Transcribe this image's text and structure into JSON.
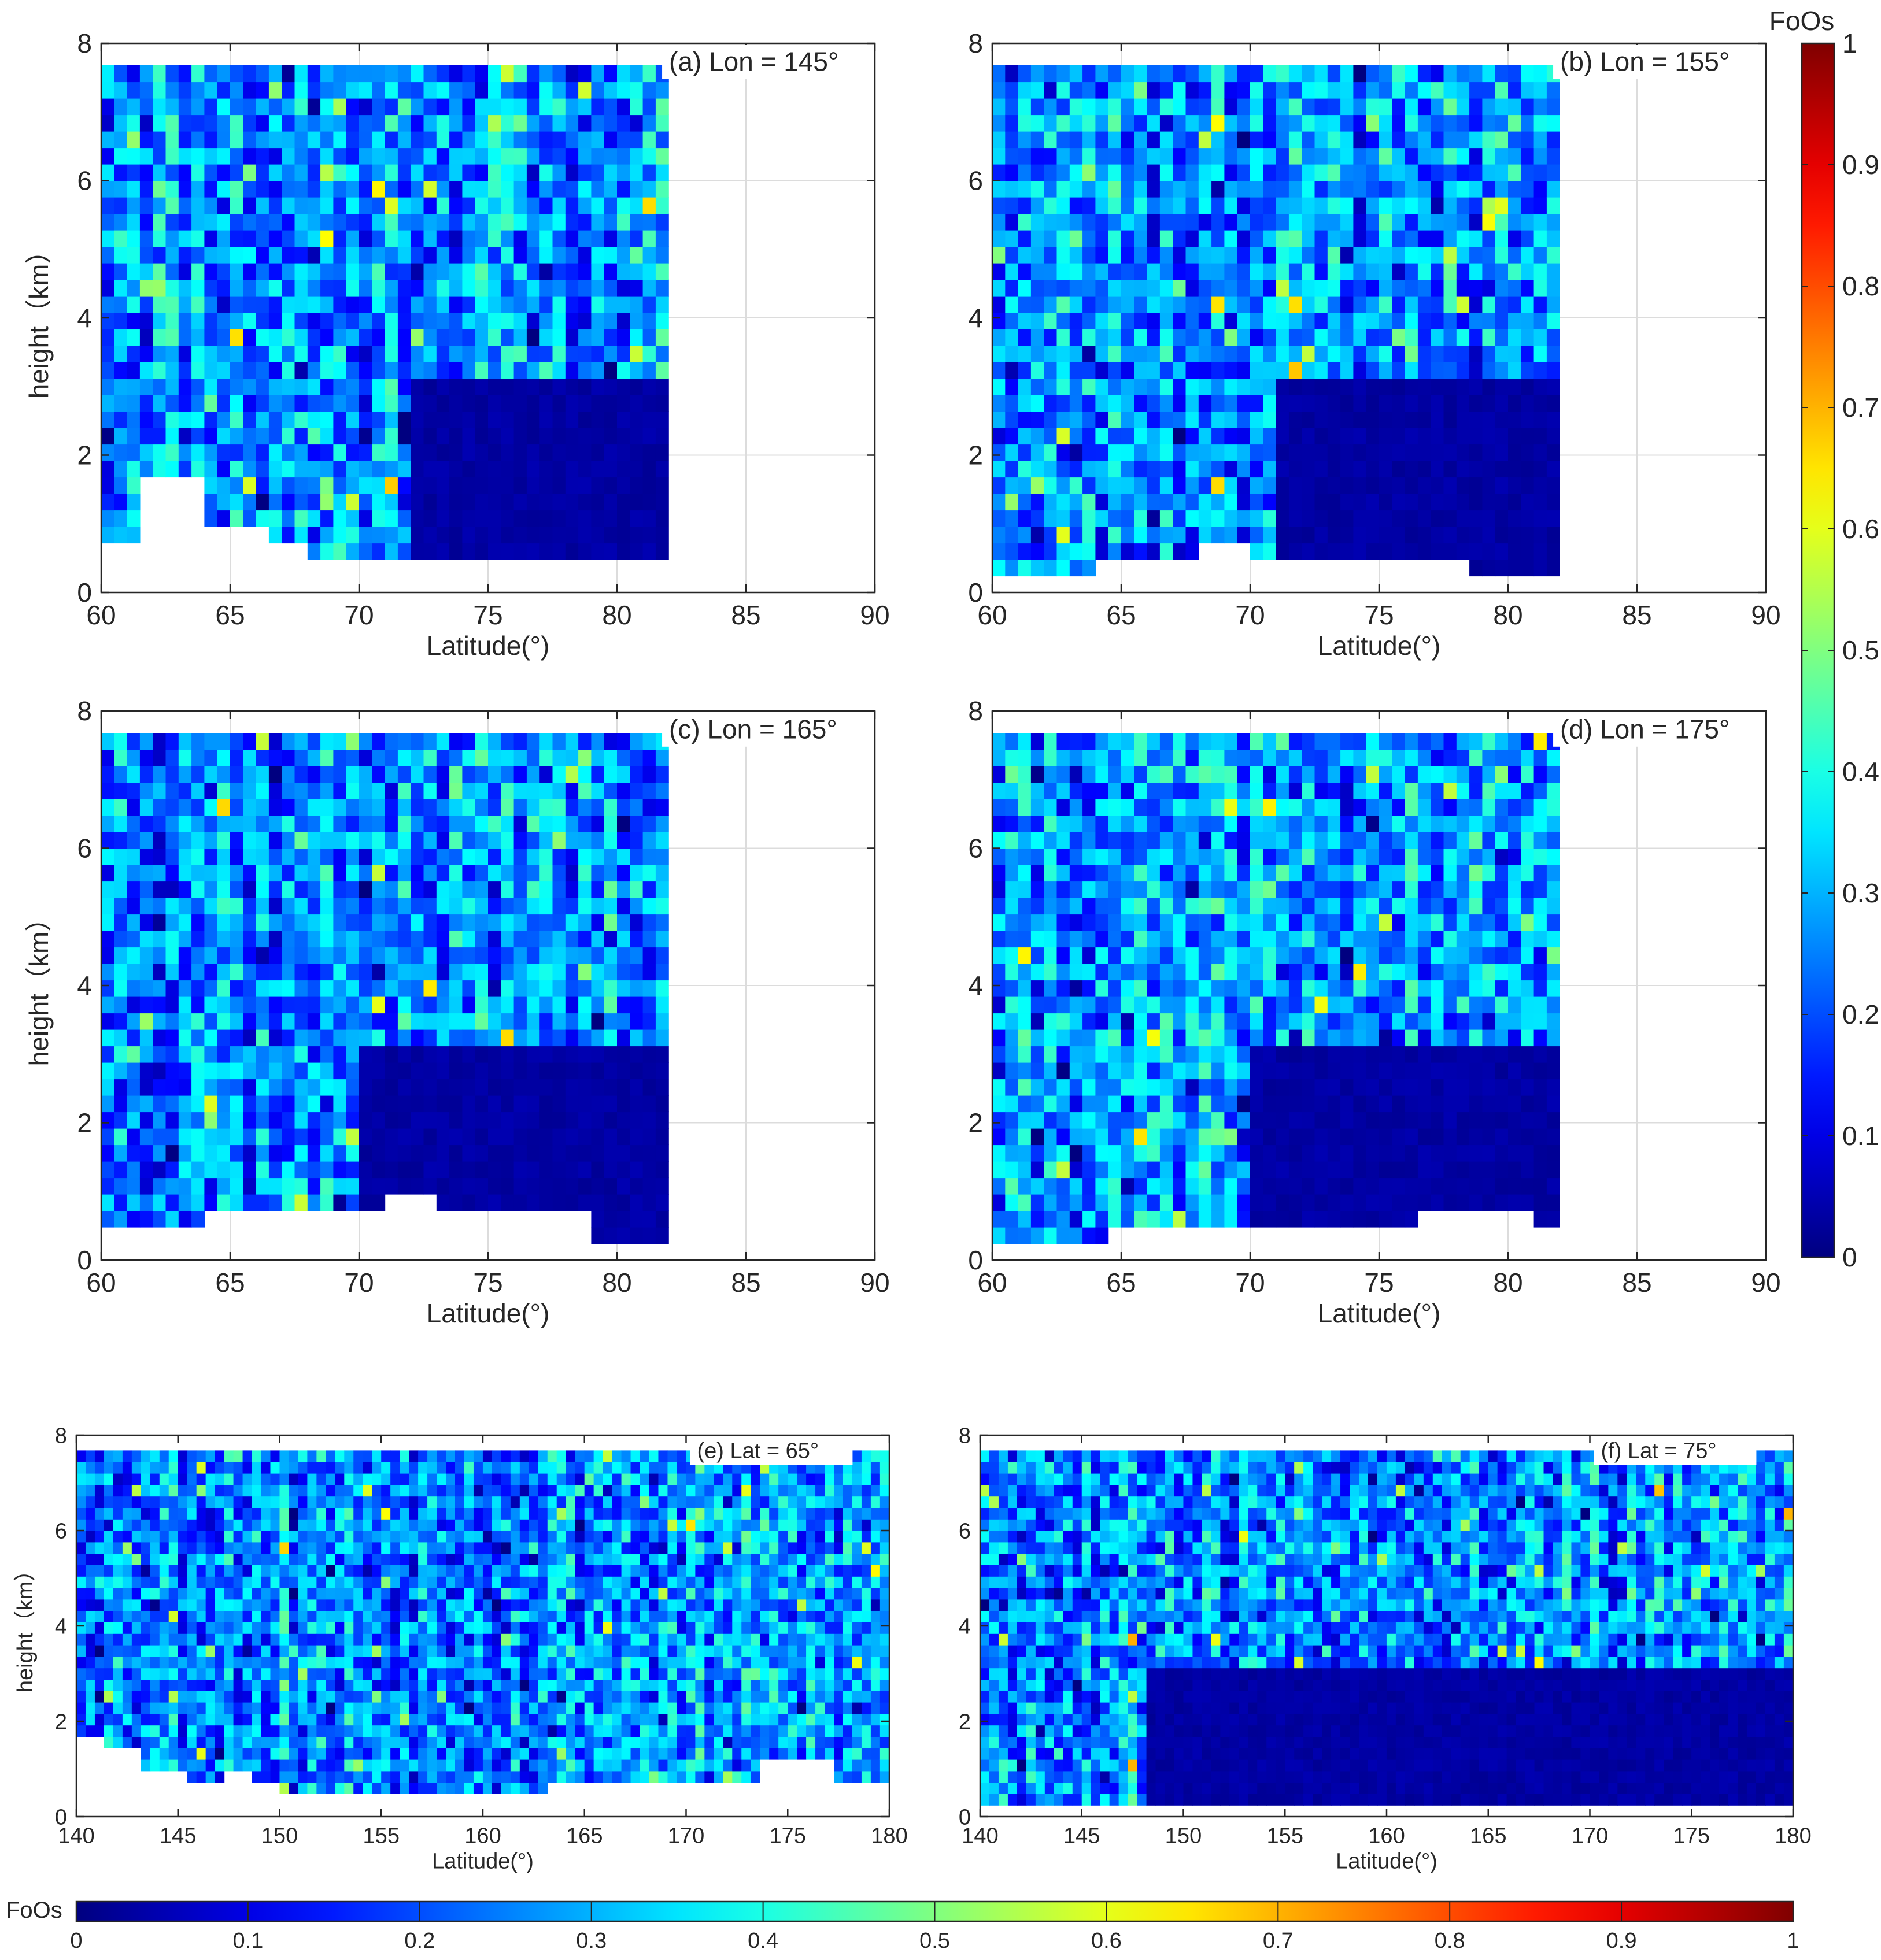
{
  "figure": {
    "colorbar_title": "FoOs",
    "colorbar_ticks": [
      "0",
      "0.1",
      "0.2",
      "0.3",
      "0.4",
      "0.5",
      "0.6",
      "0.7",
      "0.8",
      "0.9",
      "1"
    ],
    "colorbar_range": [
      0,
      1
    ],
    "colormap": "jet"
  },
  "chart_data": [
    {
      "type": "heatmap",
      "annotation": "(a) Lon = 145°",
      "xlabel": "Latitude(°)",
      "ylabel": "height（km）",
      "xlim": [
        60,
        90
      ],
      "ylim": [
        0,
        8
      ],
      "xticks": [
        "60",
        "65",
        "70",
        "75",
        "80",
        "85",
        "90"
      ],
      "yticks": [
        "0",
        "2",
        "4",
        "6",
        "8"
      ],
      "data_x_range": [
        60,
        82
      ],
      "data_y_range": [
        0.12,
        7.68
      ],
      "grid": true,
      "surface_ground": [
        0.6,
        0.6,
        0.6,
        1.6,
        1.6,
        1.6,
        1.6,
        1.6,
        0.9,
        0.9,
        0.9,
        0.9,
        0.9,
        0.6,
        0.6,
        0.6,
        0.45,
        0.45,
        0.45,
        0.45,
        0.3,
        0.3,
        0.3,
        0.3,
        0.3,
        0.3,
        0.3,
        0.3,
        0.3,
        0.3,
        0.3,
        0.3,
        0.3,
        0.3,
        0.3,
        0.3,
        0.3,
        0.3,
        0.3,
        0.3,
        0.3,
        0.3,
        0.3,
        0.3,
        0.3,
        0.3
      ],
      "low_zone": {
        "from_lat": 72,
        "top_km": 2.9,
        "value": 0.02
      },
      "seed": 11
    },
    {
      "type": "heatmap",
      "annotation": "(b) Lon = 155°",
      "xlabel": "Latitude(°)",
      "ylabel": "",
      "xlim": [
        60,
        90
      ],
      "ylim": [
        0,
        8
      ],
      "xticks": [
        "60",
        "65",
        "70",
        "75",
        "80",
        "85",
        "90"
      ],
      "yticks": [
        "0",
        "2",
        "4",
        "6",
        "8"
      ],
      "data_x_range": [
        60,
        82
      ],
      "data_y_range": [
        0.12,
        7.68
      ],
      "grid": true,
      "surface_ground": [
        0.12,
        0.12,
        0.12,
        0.12,
        0.3,
        0.3,
        0.3,
        0.3,
        0.6,
        0.6,
        0.3,
        0.3,
        0.3,
        0.3,
        0.3,
        0.3,
        0.3,
        0.3,
        0.3,
        0.12,
        0.12,
        0.12,
        0.12
      ],
      "low_zone": {
        "from_lat": 71,
        "top_km": 3.1,
        "value": 0.02
      },
      "seed": 23
    },
    {
      "type": "heatmap",
      "annotation": "(c) Lon = 165°",
      "xlabel": "Latitude(°)",
      "ylabel": "height（km）",
      "xlim": [
        60,
        90
      ],
      "ylim": [
        0,
        8
      ],
      "xticks": [
        "60",
        "65",
        "70",
        "75",
        "80",
        "85",
        "90"
      ],
      "yticks": [
        "0",
        "2",
        "4",
        "6",
        "8"
      ],
      "data_x_range": [
        60,
        82
      ],
      "data_y_range": [
        0.12,
        7.68
      ],
      "grid": true,
      "surface_ground": [
        0.3,
        0.3,
        0.3,
        0.3,
        0.5,
        0.5,
        0.5,
        0.5,
        0.5,
        0.5,
        0.5,
        0.9,
        0.9,
        0.5,
        0.5,
        0.5,
        0.5,
        0.5,
        0.5,
        0.12,
        0.12,
        0.12
      ],
      "low_zone": {
        "from_lat": 70,
        "top_km": 2.9,
        "value": 0.02
      },
      "seed": 37
    },
    {
      "type": "heatmap",
      "annotation": "(d) Lon = 175°",
      "xlabel": "Latitude(°)",
      "ylabel": "",
      "xlim": [
        60,
        90
      ],
      "ylim": [
        0,
        8
      ],
      "xticks": [
        "60",
        "65",
        "70",
        "75",
        "80",
        "85",
        "90"
      ],
      "yticks": [
        "0",
        "2",
        "4",
        "6",
        "8"
      ],
      "data_x_range": [
        60,
        82
      ],
      "data_y_range": [
        0.12,
        7.68
      ],
      "grid": true,
      "surface_ground": [
        0.12,
        0.12,
        0.12,
        0.12,
        0.3,
        0.3,
        0.3,
        0.3,
        0.3,
        0.3,
        0.3,
        0.3,
        0.3,
        0.3,
        0.3,
        0.5,
        0.6,
        0.6,
        0.5,
        0.3
      ],
      "low_zone": {
        "from_lat": 70,
        "top_km": 2.9,
        "value": 0.02
      },
      "seed": 41
    },
    {
      "type": "heatmap",
      "annotation": "(e) Lat = 65°",
      "xlabel": "Latitude(°)",
      "ylabel": "height（km）",
      "xlim": [
        140,
        180
      ],
      "ylim": [
        0,
        8
      ],
      "xticks": [
        "140",
        "145",
        "150",
        "155",
        "160",
        "165",
        "170",
        "175",
        "180"
      ],
      "yticks": [
        "0",
        "2",
        "4",
        "6",
        "8"
      ],
      "data_x_range": [
        140,
        180
      ],
      "data_y_range": [
        0.3,
        7.7
      ],
      "grid": false,
      "surface_ground": [
        1.5,
        1.5,
        1.5,
        1.3,
        1.3,
        1.3,
        1.3,
        0.8,
        0.8,
        0.8,
        0.8,
        0.8,
        0.6,
        0.6,
        0.6,
        0.6,
        0.8,
        0.8,
        0.8,
        0.6,
        0.6,
        0.6,
        0.3,
        0.3,
        0.3,
        0.3,
        0.3,
        0.3,
        0.3,
        0.3,
        0.3,
        0.3,
        0.3,
        0.3,
        0.3,
        0.3,
        0.3,
        0.3,
        0.3,
        0.3,
        0.3,
        0.3,
        0.3,
        0.3,
        0.3,
        0.3,
        0.3,
        0.3,
        0.3,
        0.3,
        0.3,
        0.6,
        0.6,
        0.6,
        0.6,
        0.6,
        0.6,
        0.6,
        0.6,
        0.6,
        0.6,
        0.6,
        0.6,
        0.6,
        0.6,
        0.6,
        0.6,
        0.6,
        0.6,
        0.6,
        0.6,
        0.6,
        0.6,
        0.6,
        1.0,
        1.0,
        1.0,
        1.0,
        1.0,
        1.0,
        1.0,
        1.0,
        0.6,
        0.6,
        0.6,
        0.6,
        0.6,
        0.6
      ],
      "low_zone": null,
      "seed": 53
    },
    {
      "type": "heatmap",
      "annotation": "(f) Lat = 75°",
      "xlabel": "Latitude(°)",
      "ylabel": "",
      "xlim": [
        140,
        180
      ],
      "ylim": [
        0,
        8
      ],
      "xticks": [
        "140",
        "145",
        "150",
        "155",
        "160",
        "165",
        "170",
        "175",
        "180"
      ],
      "yticks": [
        "0",
        "2",
        "4",
        "6",
        "8"
      ],
      "data_x_range": [
        140,
        180
      ],
      "data_y_range": [
        0.12,
        7.7
      ],
      "grid": false,
      "surface_ground": [
        0.12,
        0.12,
        0.12,
        0.12,
        0.12,
        0.12,
        0.12,
        0.12,
        0.12,
        0.12,
        0.12,
        0.12,
        0.12,
        0.12,
        0.12,
        0.12,
        0.12,
        0.12,
        0.12,
        0.12,
        0.12,
        0.12,
        0.12,
        0.12,
        0.12,
        0.12,
        0.12,
        0.12,
        0.12,
        0.12
      ],
      "low_zone": {
        "from_lon": 148,
        "top_km": 2.9,
        "value": 0.02
      },
      "seed": 67
    }
  ]
}
